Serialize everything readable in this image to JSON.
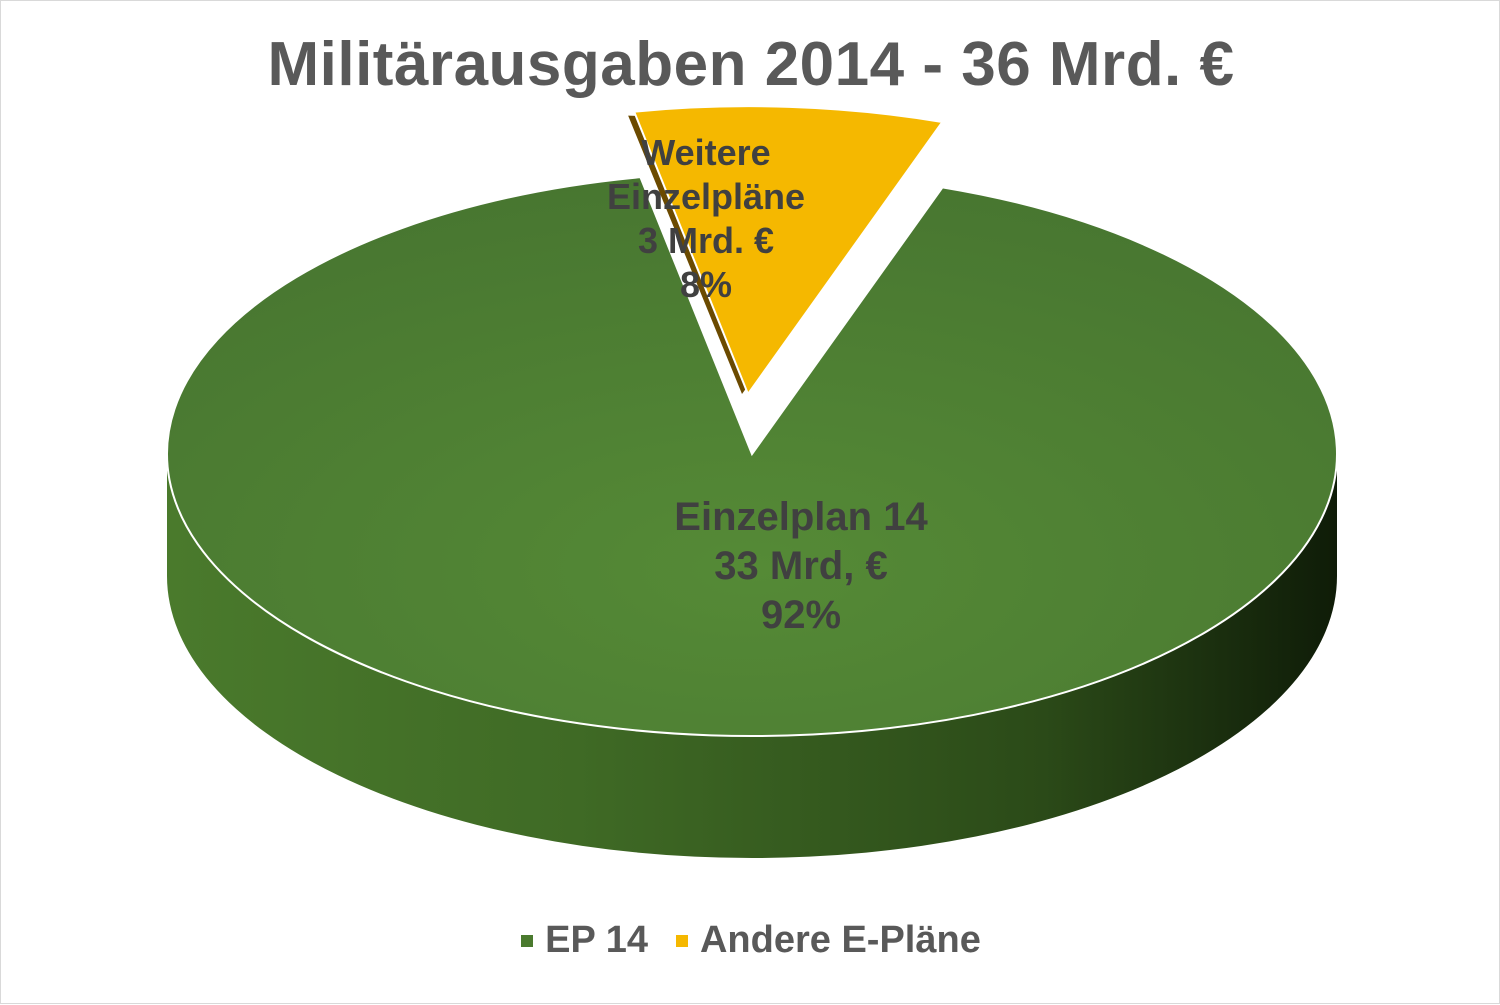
{
  "chart_data": {
    "type": "pie",
    "title": "Militärausgaben 2014 - 36 Mrd. €",
    "categories": [
      "EP 14",
      "Andere E-Pläne"
    ],
    "values": [
      33,
      3
    ],
    "percentages": [
      92,
      8
    ],
    "colors": [
      "#4a7a2e",
      "#f5b800"
    ],
    "slice_labels": [
      {
        "lines": [
          "Einzelplan 14",
          "33  Mrd, €",
          "92%"
        ]
      },
      {
        "lines": [
          "Weitere",
          "Einzelpläne",
          "3 Mrd. €",
          "8%"
        ]
      }
    ],
    "legend": {
      "position": "bottom",
      "entries": [
        "EP 14",
        "Andere E-Pläne"
      ]
    },
    "style": "3d-pie-exploded"
  }
}
